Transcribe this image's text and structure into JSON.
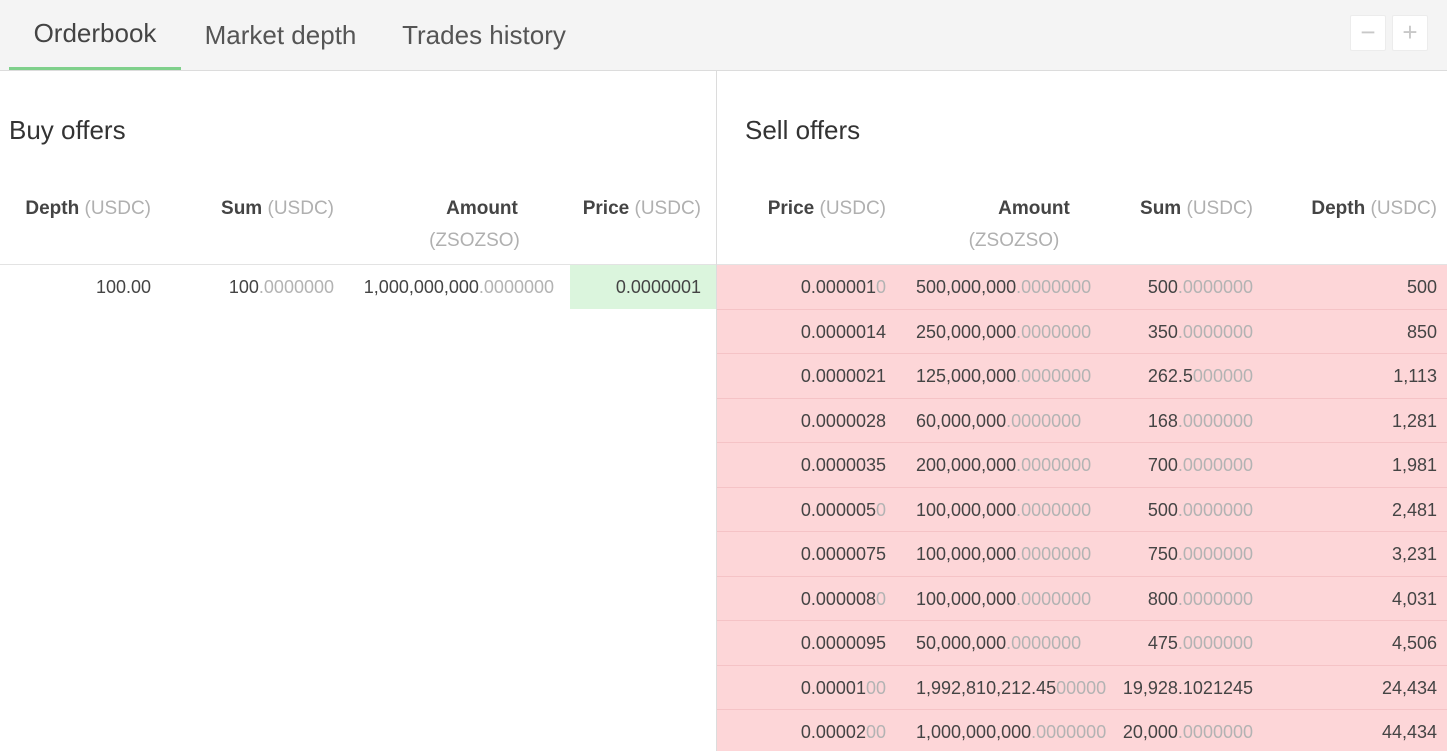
{
  "tabs": [
    {
      "label": "Orderbook",
      "active": true
    },
    {
      "label": "Market depth",
      "active": false
    },
    {
      "label": "Trades history",
      "active": false
    }
  ],
  "zoom": {
    "out_label": "−",
    "in_label": "+"
  },
  "colors": {
    "accent": "#7fd08b",
    "buy_highlight": "#dbf5dd",
    "sell_bg": "#fdd6d8"
  },
  "buy": {
    "title": "Buy offers",
    "columns": [
      {
        "label": "Depth",
        "unit": "(USDC)"
      },
      {
        "label": "Sum",
        "unit": "(USDC)"
      },
      {
        "label": "Amount",
        "unit": "(ZSOZSO)"
      },
      {
        "label": "Price",
        "unit": "(USDC)"
      }
    ],
    "rows": [
      {
        "depth": "100.00",
        "sum": "100",
        "sum_dim": ".0000000",
        "amount": "1,000,000,000",
        "amount_dim": ".0000000",
        "price": "0.0000001",
        "price_dim": ""
      }
    ]
  },
  "sell": {
    "title": "Sell offers",
    "columns": [
      {
        "label": "Price",
        "unit": "(USDC)"
      },
      {
        "label": "Amount",
        "unit": "(ZSOZSO)"
      },
      {
        "label": "Sum",
        "unit": "(USDC)"
      },
      {
        "label": "Depth",
        "unit": "(USDC)"
      }
    ],
    "rows": [
      {
        "price": "0.000001",
        "price_dim": "0",
        "amount": "500,000,000",
        "amount_dim": ".0000000",
        "sum": "500",
        "sum_dim": ".0000000",
        "depth": "500"
      },
      {
        "price": "0.0000014",
        "price_dim": "",
        "amount": "250,000,000",
        "amount_dim": ".0000000",
        "sum": "350",
        "sum_dim": ".0000000",
        "depth": "850"
      },
      {
        "price": "0.0000021",
        "price_dim": "",
        "amount": "125,000,000",
        "amount_dim": ".0000000",
        "sum": "262.5",
        "sum_dim": "000000",
        "depth": "1,113"
      },
      {
        "price": "0.0000028",
        "price_dim": "",
        "amount": "60,000,000",
        "amount_dim": ".0000000",
        "sum": "168",
        "sum_dim": ".0000000",
        "depth": "1,281"
      },
      {
        "price": "0.0000035",
        "price_dim": "",
        "amount": "200,000,000",
        "amount_dim": ".0000000",
        "sum": "700",
        "sum_dim": ".0000000",
        "depth": "1,981"
      },
      {
        "price": "0.000005",
        "price_dim": "0",
        "amount": "100,000,000",
        "amount_dim": ".0000000",
        "sum": "500",
        "sum_dim": ".0000000",
        "depth": "2,481"
      },
      {
        "price": "0.0000075",
        "price_dim": "",
        "amount": "100,000,000",
        "amount_dim": ".0000000",
        "sum": "750",
        "sum_dim": ".0000000",
        "depth": "3,231"
      },
      {
        "price": "0.000008",
        "price_dim": "0",
        "amount": "100,000,000",
        "amount_dim": ".0000000",
        "sum": "800",
        "sum_dim": ".0000000",
        "depth": "4,031"
      },
      {
        "price": "0.0000095",
        "price_dim": "",
        "amount": "50,000,000",
        "amount_dim": ".0000000",
        "sum": "475",
        "sum_dim": ".0000000",
        "depth": "4,506"
      },
      {
        "price": "0.00001",
        "price_dim": "00",
        "amount": "1,992,810,212.45",
        "amount_dim": "00000",
        "sum": "19,928.1021245",
        "sum_dim": "",
        "depth": "24,434"
      },
      {
        "price": "0.00002",
        "price_dim": "00",
        "amount": "1,000,000,000",
        "amount_dim": ".0000000",
        "sum": "20,000",
        "sum_dim": ".0000000",
        "depth": "44,434"
      }
    ]
  }
}
